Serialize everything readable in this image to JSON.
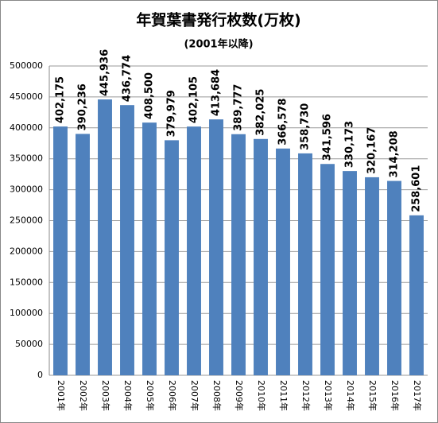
{
  "chart_data": {
    "type": "bar",
    "title": "年賀葉書発行枚数(万枚)",
    "subtitle": "(2001年以降)",
    "categories": [
      "2001年",
      "2002年",
      "2003年",
      "2004年",
      "2005年",
      "2006年",
      "2007年",
      "2008年",
      "2009年",
      "2010年",
      "2011年",
      "2012年",
      "2013年",
      "2014年",
      "2015年",
      "2016年",
      "2017年"
    ],
    "values": [
      402175,
      390236,
      445936,
      436774,
      408500,
      379979,
      402105,
      413684,
      389777,
      382025,
      366578,
      358730,
      341596,
      330173,
      320167,
      314208,
      258601
    ],
    "value_labels": [
      "402,175",
      "390,236",
      "445,936",
      "436,774",
      "408,500",
      "379,979",
      "402,105",
      "413,684",
      "389,777",
      "382,025",
      "366,578",
      "358,730",
      "341,596",
      "330,173",
      "320,167",
      "314,208",
      "258,601"
    ],
    "color": "#4f81bd",
    "ylim": [
      0,
      500000
    ],
    "yticks": [
      0,
      50000,
      100000,
      150000,
      200000,
      250000,
      300000,
      350000,
      400000,
      450000,
      500000
    ],
    "grid": true
  }
}
